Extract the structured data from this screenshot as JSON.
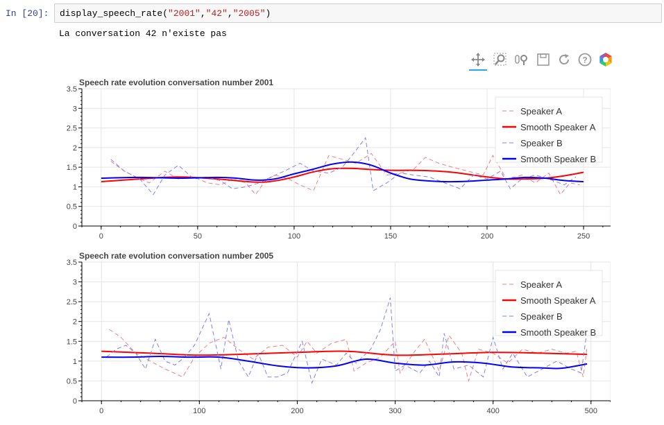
{
  "notebook": {
    "prompt": "In [20]:",
    "code": {
      "fn": "display_speech_rate",
      "open": "(",
      "arg1": "\"2001\"",
      "arg2": "\"42\"",
      "arg3": "\"2005\"",
      "comma": ",",
      "close": ")"
    },
    "output_text": "La conversation 42 n'existe pas"
  },
  "toolbar": {
    "tools": [
      "pan-icon",
      "box-zoom-icon",
      "wheel-zoom-icon",
      "save-icon",
      "reset-icon",
      "help-icon",
      "bokeh-logo-icon"
    ],
    "active": "pan-icon"
  },
  "colors": {
    "speaker_a": "#ff0000",
    "speaker_b": "#0000ff",
    "speaker_a_raw": "#f08080",
    "speaker_b_raw": "#8080f0"
  },
  "chart_data": [
    {
      "type": "line",
      "title": "Speech rate evolution conversation number 2001",
      "xlim": [
        -10,
        264
      ],
      "ylim": [
        0,
        3.5
      ],
      "xticks": [
        0,
        50,
        100,
        150,
        200,
        250
      ],
      "yticks": [
        0,
        0.5,
        1,
        1.5,
        2,
        2.5,
        3,
        3.5
      ],
      "grid": true,
      "legend_position": "top-right",
      "legend": [
        "Speaker A",
        "Smooth Speaker A",
        "Speaker B",
        "Smooth Speaker B"
      ],
      "series": [
        {
          "name": "Speaker A",
          "style": "dashed",
          "x": [
            5,
            12,
            20,
            25,
            33,
            40,
            48,
            55,
            62,
            68,
            75,
            80,
            85,
            90,
            97,
            103,
            110,
            118,
            125,
            132,
            140,
            148,
            155,
            162,
            168,
            175,
            182,
            190,
            198,
            203,
            210,
            218,
            225,
            232,
            238,
            243,
            248
          ],
          "y": [
            1.65,
            1.4,
            1.2,
            1.1,
            1.4,
            1.2,
            1.25,
            1.1,
            1.05,
            1.2,
            1.1,
            0.8,
            1.15,
            1.3,
            1.2,
            1.05,
            0.9,
            1.8,
            1.7,
            1.6,
            1.85,
            1.3,
            1.35,
            1.45,
            1.75,
            1.6,
            1.5,
            1.4,
            1.3,
            1.8,
            1.2,
            1.3,
            1.1,
            1.35,
            0.8,
            1.1,
            1.05
          ]
        },
        {
          "name": "Smooth Speaker A",
          "style": "solid",
          "x": [
            0,
            20,
            40,
            60,
            80,
            90,
            100,
            110,
            120,
            130,
            140,
            150,
            160,
            170,
            180,
            190,
            200,
            210,
            220,
            230,
            240,
            250
          ],
          "y": [
            1.13,
            1.2,
            1.25,
            1.2,
            1.12,
            1.15,
            1.25,
            1.38,
            1.46,
            1.47,
            1.44,
            1.42,
            1.42,
            1.41,
            1.38,
            1.32,
            1.25,
            1.2,
            1.2,
            1.22,
            1.28,
            1.37
          ]
        },
        {
          "name": "Speaker B",
          "style": "dashed",
          "x": [
            5,
            12,
            20,
            27,
            33,
            40,
            48,
            55,
            62,
            68,
            75,
            82,
            88,
            95,
            103,
            110,
            118,
            125,
            130,
            137,
            141,
            148,
            155,
            162,
            170,
            178,
            186,
            193,
            200,
            207,
            212,
            218,
            225,
            232,
            240,
            246
          ],
          "y": [
            1.7,
            1.4,
            1.2,
            0.8,
            1.3,
            1.55,
            1.2,
            1.25,
            1.15,
            0.95,
            1.0,
            1.1,
            1.25,
            1.4,
            1.6,
            1.4,
            1.35,
            1.5,
            1.8,
            2.25,
            0.9,
            1.1,
            1.35,
            1.3,
            1.25,
            1.1,
            0.95,
            1.3,
            1.2,
            1.4,
            0.95,
            1.2,
            1.3,
            1.2,
            1.05,
            1.25
          ]
        },
        {
          "name": "Smooth Speaker B",
          "style": "solid",
          "x": [
            0,
            20,
            40,
            60,
            70,
            80,
            90,
            100,
            110,
            120,
            130,
            140,
            150,
            160,
            170,
            180,
            190,
            200,
            210,
            220,
            230,
            240,
            250
          ],
          "y": [
            1.22,
            1.24,
            1.22,
            1.24,
            1.22,
            1.17,
            1.2,
            1.33,
            1.45,
            1.58,
            1.63,
            1.55,
            1.35,
            1.2,
            1.15,
            1.13,
            1.14,
            1.17,
            1.2,
            1.24,
            1.22,
            1.16,
            1.13
          ]
        }
      ]
    },
    {
      "type": "line",
      "title": "Speech rate evolution conversation number 2005",
      "xlim": [
        -20,
        520
      ],
      "ylim": [
        0,
        3.5
      ],
      "xticks": [
        0,
        100,
        200,
        300,
        400,
        500
      ],
      "yticks": [
        0,
        0.5,
        1,
        1.5,
        2,
        2.5,
        3,
        3.5
      ],
      "grid": true,
      "legend_position": "top-right",
      "legend": [
        "Speaker A",
        "Smooth Speaker A",
        "Speaker B",
        "Smooth Speaker B"
      ],
      "series": [
        {
          "name": "Speaker A",
          "style": "dashed",
          "x": [
            8,
            20,
            35,
            50,
            65,
            83,
            95,
            110,
            125,
            140,
            155,
            170,
            185,
            200,
            210,
            220,
            235,
            250,
            258,
            270,
            285,
            300,
            305,
            320,
            330,
            345,
            355,
            368,
            375,
            385,
            400,
            415,
            430,
            445,
            460,
            475,
            485,
            492,
            496
          ],
          "y": [
            1.8,
            1.6,
            1.2,
            1.0,
            0.8,
            0.6,
            1.1,
            1.45,
            1.6,
            1.3,
            1.05,
            1.35,
            1.4,
            1.1,
            1.5,
            1.2,
            1.45,
            1.55,
            0.75,
            0.95,
            1.1,
            1.5,
            0.7,
            1.25,
            1.55,
            0.75,
            1.65,
            1.2,
            0.5,
            1.3,
            1.2,
            0.95,
            1.3,
            1.2,
            1.3,
            1.2,
            1.25,
            0.6,
            1.35
          ]
        },
        {
          "name": "Smooth Speaker A",
          "style": "solid",
          "x": [
            0,
            50,
            100,
            150,
            200,
            250,
            300,
            350,
            400,
            450,
            496
          ],
          "y": [
            1.25,
            1.2,
            1.15,
            1.18,
            1.22,
            1.25,
            1.15,
            1.18,
            1.22,
            1.2,
            1.17
          ]
        },
        {
          "name": "Speaker B",
          "style": "dashed",
          "x": [
            5,
            15,
            25,
            35,
            45,
            55,
            65,
            75,
            85,
            95,
            110,
            122,
            130,
            140,
            150,
            160,
            170,
            180,
            190,
            205,
            215,
            225,
            240,
            250,
            260,
            275,
            285,
            295,
            300,
            310,
            325,
            335,
            345,
            350,
            360,
            375,
            390,
            400,
            410,
            420,
            435,
            450,
            465,
            480,
            490,
            495
          ],
          "y": [
            1.1,
            1.3,
            1.4,
            1.2,
            0.8,
            1.55,
            1.0,
            0.9,
            1.1,
            1.4,
            2.2,
            0.8,
            2.05,
            1.0,
            0.6,
            1.2,
            0.6,
            0.6,
            0.7,
            1.5,
            0.45,
            1.05,
            0.9,
            1.2,
            0.95,
            1.3,
            1.8,
            2.6,
            0.75,
            0.9,
            0.7,
            1.0,
            0.6,
            1.7,
            0.8,
            0.9,
            0.6,
            1.6,
            0.8,
            1.2,
            0.6,
            0.8,
            1.0,
            0.8,
            0.7,
            1.6
          ]
        },
        {
          "name": "Smooth Speaker B",
          "style": "solid",
          "x": [
            0,
            30,
            60,
            90,
            120,
            150,
            180,
            210,
            240,
            270,
            300,
            330,
            360,
            390,
            420,
            450,
            470,
            496
          ],
          "y": [
            1.1,
            1.1,
            1.12,
            1.1,
            1.1,
            1.0,
            0.88,
            0.83,
            0.88,
            1.05,
            0.95,
            0.9,
            0.98,
            0.95,
            0.85,
            0.83,
            0.82,
            0.93
          ]
        }
      ]
    }
  ]
}
